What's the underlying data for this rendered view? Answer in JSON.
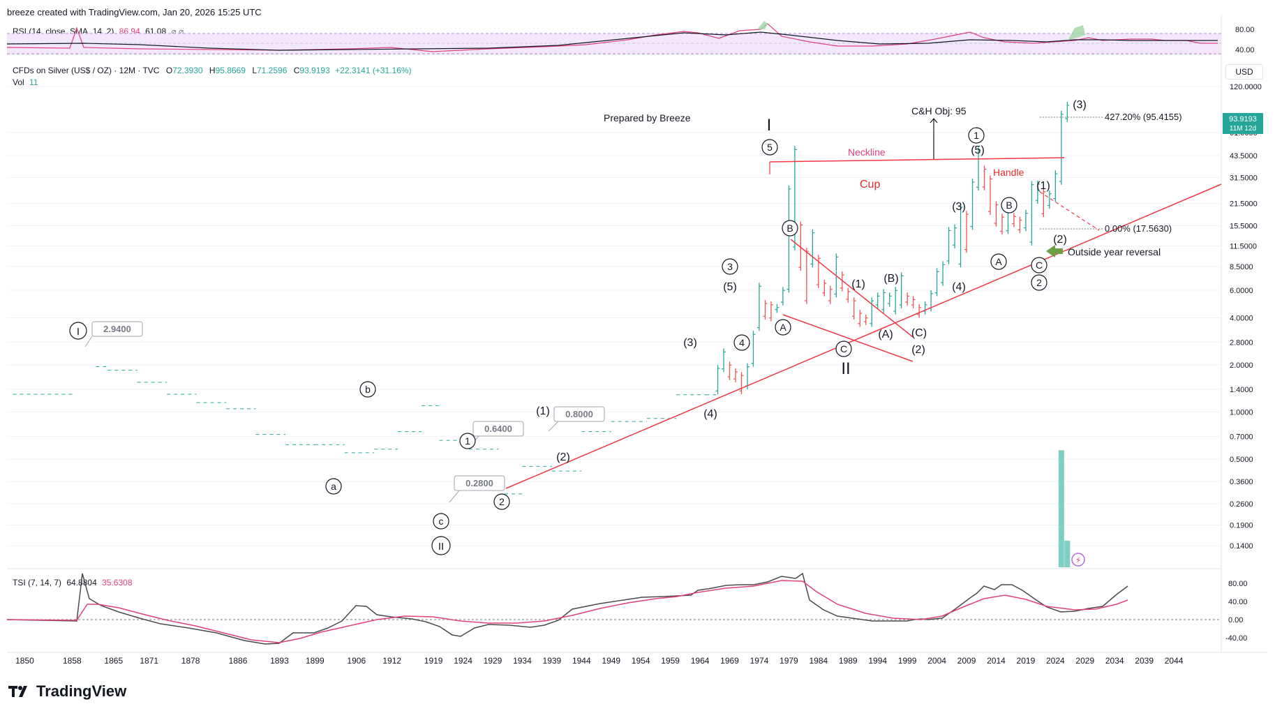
{
  "header": {
    "text": "breeze created with TradingView.com, Jan 20, 2026 15:25 UTC"
  },
  "rsi": {
    "label": "RSI (14, close, SMA, 14, 2)",
    "value": "86.94",
    "sma": "61.08",
    "ticks": [
      "80.00",
      "40.00"
    ]
  },
  "symbol": {
    "label": "CFDs on Silver (US$ / OZ) · 12M · TVC",
    "o": "72.3930",
    "h": "95.8669",
    "l": "71.2596",
    "c": "93.9193",
    "chg": "+22.3141 (+31.16%)",
    "o_label": "O",
    "h_label": "H",
    "l_label": "L",
    "c_label": "C"
  },
  "vol": {
    "label": "Vol",
    "value": "11"
  },
  "tsi": {
    "label": "TSI (7, 14, 7)",
    "a": "64.8804",
    "b": "35.6308",
    "ticks": [
      "80.00",
      "40.00",
      "0.00",
      "-40.00"
    ]
  },
  "currency": "USD",
  "price_badge": {
    "price": "93.9193",
    "countdown": "11M 12d"
  },
  "brand": "TradingView",
  "colors": {
    "up": "#26a69a",
    "down": "#ef5350",
    "trend": "#f23645",
    "rsi": "#e0407b",
    "vol": "#7fcfc5"
  },
  "chart_data": {
    "type": "bar",
    "title": "CFDs on Silver (US$ / OZ) · 12M · TVC",
    "y_scale": "log",
    "ylim": [
      0.1,
      160
    ],
    "y_ticks": [
      "120.0000",
      "61.0000",
      "43.5000",
      "31.5000",
      "21.5000",
      "15.5000",
      "11.5000",
      "8.5000",
      "6.0000",
      "4.0000",
      "2.8000",
      "2.0000",
      "1.4000",
      "1.0000",
      "0.7000",
      "0.5000",
      "0.3600",
      "0.2600",
      "0.1900",
      "0.1400"
    ],
    "y_tick_values": [
      120,
      61,
      43.5,
      31.5,
      21.5,
      15.5,
      11.5,
      8.5,
      6,
      4,
      2.8,
      2,
      1.4,
      1,
      0.7,
      0.5,
      0.36,
      0.26,
      0.19,
      0.14
    ],
    "x_ticks": [
      "1850",
      "1858",
      "1865",
      "1871",
      "1878",
      "1886",
      "1893",
      "1899",
      "1906",
      "1912",
      "1919",
      "1924",
      "1929",
      "1934",
      "1939",
      "1944",
      "1949",
      "1954",
      "1959",
      "1964",
      "1969",
      "1974",
      "1979",
      "1984",
      "1989",
      "1994",
      "1999",
      "2004",
      "2009",
      "2014",
      "2019",
      "2024",
      "2029",
      "2034",
      "2039",
      "2044"
    ],
    "x_tick_years": [
      1850,
      1858,
      1865,
      1871,
      1878,
      1886,
      1893,
      1899,
      1906,
      1912,
      1919,
      1924,
      1929,
      1934,
      1939,
      1944,
      1949,
      1954,
      1959,
      1964,
      1969,
      1974,
      1979,
      1984,
      1989,
      1994,
      1999,
      2004,
      2009,
      2014,
      2019,
      2024,
      2029,
      2034,
      2039,
      2044
    ],
    "xlim": [
      1847,
      2052
    ],
    "early_segments": [
      {
        "x1": 1848,
        "x2": 1858,
        "y": 1.3
      },
      {
        "x1": 1862,
        "x2": 1864,
        "y": 1.95
      },
      {
        "x1": 1864,
        "x2": 1869,
        "y": 1.85
      },
      {
        "x1": 1869,
        "x2": 1874,
        "y": 1.55
      },
      {
        "x1": 1874,
        "x2": 1879,
        "y": 1.3
      },
      {
        "x1": 1879,
        "x2": 1884,
        "y": 1.15
      },
      {
        "x1": 1884,
        "x2": 1889,
        "y": 1.05
      },
      {
        "x1": 1889,
        "x2": 1894,
        "y": 0.72
      },
      {
        "x1": 1894,
        "x2": 1899,
        "y": 0.62
      },
      {
        "x1": 1899,
        "x2": 1904,
        "y": 0.62
      },
      {
        "x1": 1904,
        "x2": 1909,
        "y": 0.55
      },
      {
        "x1": 1909,
        "x2": 1913,
        "y": 0.58
      },
      {
        "x1": 1913,
        "x2": 1917,
        "y": 0.75
      },
      {
        "x1": 1917,
        "x2": 1920,
        "y": 1.1
      },
      {
        "x1": 1920,
        "x2": 1925,
        "y": 0.66
      },
      {
        "x1": 1925,
        "x2": 1930,
        "y": 0.58
      },
      {
        "x1": 1931,
        "x2": 1934,
        "y": 0.3
      },
      {
        "x1": 1934,
        "x2": 1939,
        "y": 0.45
      },
      {
        "x1": 1939,
        "x2": 1944,
        "y": 0.42
      },
      {
        "x1": 1944,
        "x2": 1949,
        "y": 0.75
      },
      {
        "x1": 1949,
        "x2": 1955,
        "y": 0.87
      },
      {
        "x1": 1955,
        "x2": 1960,
        "y": 0.91
      },
      {
        "x1": 1960,
        "x2": 1965,
        "y": 1.29
      },
      {
        "x1": 1965,
        "x2": 1967,
        "y": 1.29
      }
    ],
    "bars": [
      {
        "year": 1967,
        "low": 1.3,
        "high": 2.0
      },
      {
        "year": 1968,
        "low": 1.8,
        "high": 2.55
      },
      {
        "year": 1969,
        "low": 1.6,
        "high": 2.1
      },
      {
        "year": 1970,
        "low": 1.55,
        "high": 1.9
      },
      {
        "year": 1971,
        "low": 1.3,
        "high": 1.8
      },
      {
        "year": 1972,
        "low": 1.4,
        "high": 2.05
      },
      {
        "year": 1973,
        "low": 1.95,
        "high": 3.3
      },
      {
        "year": 1974,
        "low": 3.3,
        "high": 6.7
      },
      {
        "year": 1975,
        "low": 3.9,
        "high": 5.2
      },
      {
        "year": 1976,
        "low": 3.8,
        "high": 5.1
      },
      {
        "year": 1977,
        "low": 4.3,
        "high": 4.9
      },
      {
        "year": 1978,
        "low": 4.8,
        "high": 6.3
      },
      {
        "year": 1979,
        "low": 5.8,
        "high": 28.0
      },
      {
        "year": 1980,
        "low": 10.8,
        "high": 50.0
      },
      {
        "year": 1981,
        "low": 8.0,
        "high": 16.5
      },
      {
        "year": 1982,
        "low": 4.9,
        "high": 11.2
      },
      {
        "year": 1983,
        "low": 8.4,
        "high": 14.7
      },
      {
        "year": 1984,
        "low": 6.2,
        "high": 10.1
      },
      {
        "year": 1985,
        "low": 5.5,
        "high": 7.0
      },
      {
        "year": 1986,
        "low": 4.9,
        "high": 6.4
      },
      {
        "year": 1987,
        "low": 5.4,
        "high": 10.3
      },
      {
        "year": 1988,
        "low": 5.9,
        "high": 7.9
      },
      {
        "year": 1989,
        "low": 5.0,
        "high": 6.2
      },
      {
        "year": 1990,
        "low": 3.9,
        "high": 5.4
      },
      {
        "year": 1991,
        "low": 3.5,
        "high": 4.5
      },
      {
        "year": 1992,
        "low": 3.6,
        "high": 4.2
      },
      {
        "year": 1993,
        "low": 3.5,
        "high": 5.4
      },
      {
        "year": 1994,
        "low": 4.6,
        "high": 5.8
      },
      {
        "year": 1995,
        "low": 4.3,
        "high": 6.1
      },
      {
        "year": 1996,
        "low": 4.7,
        "high": 5.8
      },
      {
        "year": 1997,
        "low": 4.2,
        "high": 6.3
      },
      {
        "year": 1998,
        "low": 4.6,
        "high": 7.8
      },
      {
        "year": 1999,
        "low": 4.8,
        "high": 5.8
      },
      {
        "year": 2000,
        "low": 4.6,
        "high": 5.5
      },
      {
        "year": 2001,
        "low": 4.0,
        "high": 4.9
      },
      {
        "year": 2002,
        "low": 4.2,
        "high": 5.1
      },
      {
        "year": 2003,
        "low": 4.4,
        "high": 6.0
      },
      {
        "year": 2004,
        "low": 5.5,
        "high": 8.3
      },
      {
        "year": 2005,
        "low": 6.4,
        "high": 9.2
      },
      {
        "year": 2006,
        "low": 8.8,
        "high": 15.2
      },
      {
        "year": 2007,
        "low": 11.1,
        "high": 15.8
      },
      {
        "year": 2008,
        "low": 8.4,
        "high": 21.4
      },
      {
        "year": 2009,
        "low": 10.4,
        "high": 19.3
      },
      {
        "year": 2010,
        "low": 14.6,
        "high": 31.0
      },
      {
        "year": 2011,
        "low": 26.0,
        "high": 49.8
      },
      {
        "year": 2012,
        "low": 26.1,
        "high": 37.5
      },
      {
        "year": 2013,
        "low": 18.2,
        "high": 32.5
      },
      {
        "year": 2014,
        "low": 15.3,
        "high": 22.2
      },
      {
        "year": 2015,
        "low": 13.6,
        "high": 18.5
      },
      {
        "year": 2016,
        "low": 13.7,
        "high": 21.2
      },
      {
        "year": 2017,
        "low": 15.2,
        "high": 18.7
      },
      {
        "year": 2018,
        "low": 13.9,
        "high": 17.7
      },
      {
        "year": 2019,
        "low": 14.3,
        "high": 19.6
      },
      {
        "year": 2020,
        "low": 11.6,
        "high": 29.9
      },
      {
        "year": 2021,
        "low": 21.4,
        "high": 30.1
      },
      {
        "year": 2022,
        "low": 17.6,
        "high": 26.9
      },
      {
        "year": 2023,
        "low": 19.9,
        "high": 26.1
      },
      {
        "year": 2024,
        "low": 22.0,
        "high": 35.0
      },
      {
        "year": 2025,
        "low": 28.3,
        "high": 84.0
      },
      {
        "year": 2026,
        "low": 71.26,
        "high": 95.87
      }
    ],
    "volume": [
      {
        "year": 2025,
        "value": 11
      },
      {
        "year": 2026,
        "value": 2.5
      }
    ],
    "vol_max": 12
  },
  "annotations": {
    "prepared": "Prepared by Breeze",
    "ch_obj": "C&H Obj: 95",
    "neckline": "Neckline",
    "cup": "Cup",
    "handle": "Handle",
    "fib_427": "427.20% (95.4155)",
    "fib_0": "0.00% (17.5630)",
    "outside_year": "Outside year reversal",
    "price_boxes": [
      "2.9400",
      "0.6400",
      "0.8000",
      "0.2800"
    ],
    "wave_I": "I",
    "wave_II": "II",
    "w5": "5",
    "w1": "1",
    "w2": "2",
    "w3": "3",
    "w4": "4",
    "wA": "A",
    "wB": "B",
    "wC": "C",
    "wa": "a",
    "wb": "b",
    "wc": "c",
    "p1": "(1)",
    "p2": "(2)",
    "p3": "(3)",
    "p4": "(4)",
    "p5": "(5)",
    "pA": "(A)",
    "pB": "(B)",
    "pC": "(C)"
  }
}
